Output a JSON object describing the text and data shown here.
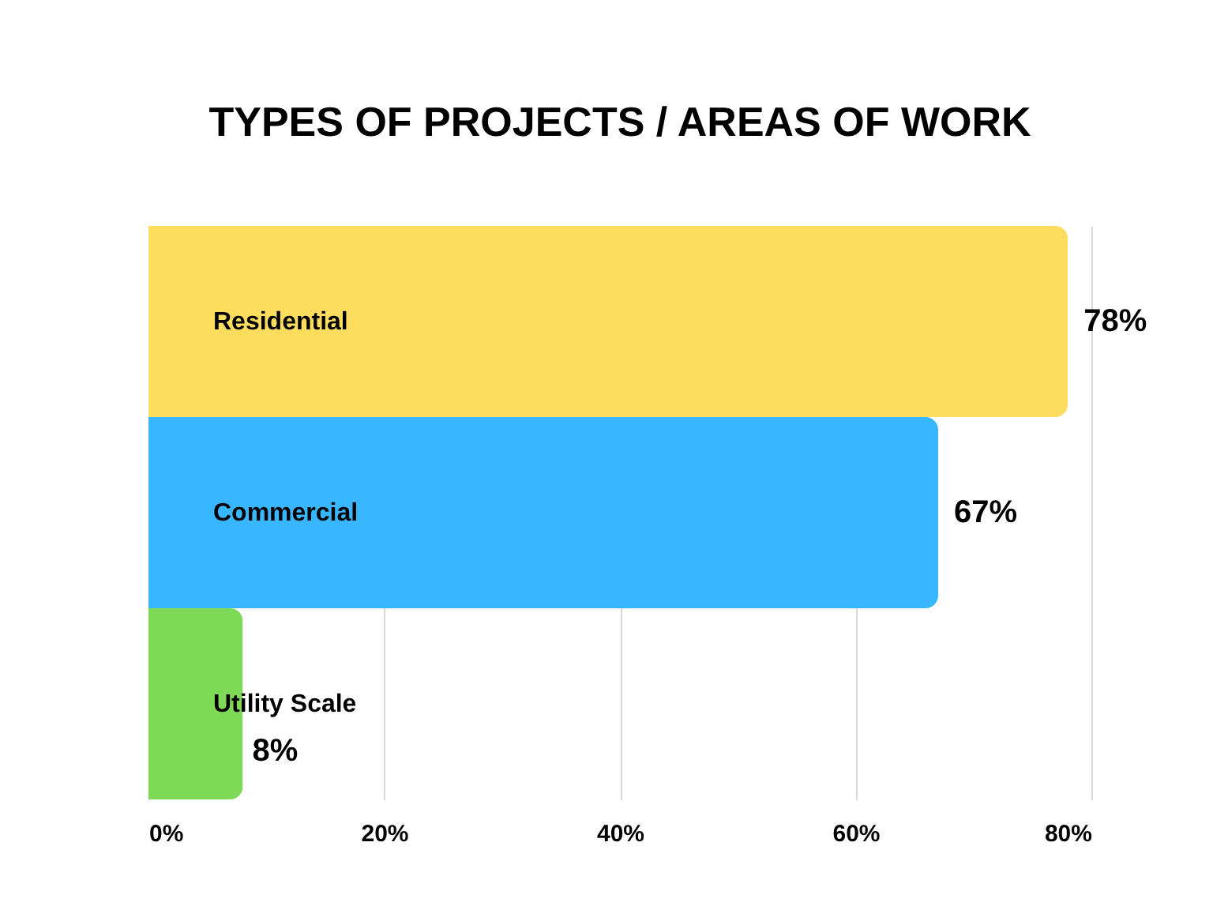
{
  "chart_data": {
    "type": "bar",
    "orientation": "horizontal",
    "title": "TYPES OF PROJECTS / AREAS OF WORK",
    "categories": [
      "Residential",
      "Commercial",
      "Utility Scale"
    ],
    "values": [
      78,
      67,
      8
    ],
    "colors": [
      "#fedd5e",
      "#38b6ff",
      "#7ed957"
    ],
    "value_labels": [
      "78%",
      "67%",
      "8%"
    ],
    "xlim": [
      0,
      80
    ],
    "xticks": [
      {
        "value": 0,
        "label": "0%"
      },
      {
        "value": 20,
        "label": "20%"
      },
      {
        "value": 40,
        "label": "40%"
      },
      {
        "value": 60,
        "label": "60%"
      },
      {
        "value": 80,
        "label": "80%"
      }
    ],
    "grid": "x"
  }
}
